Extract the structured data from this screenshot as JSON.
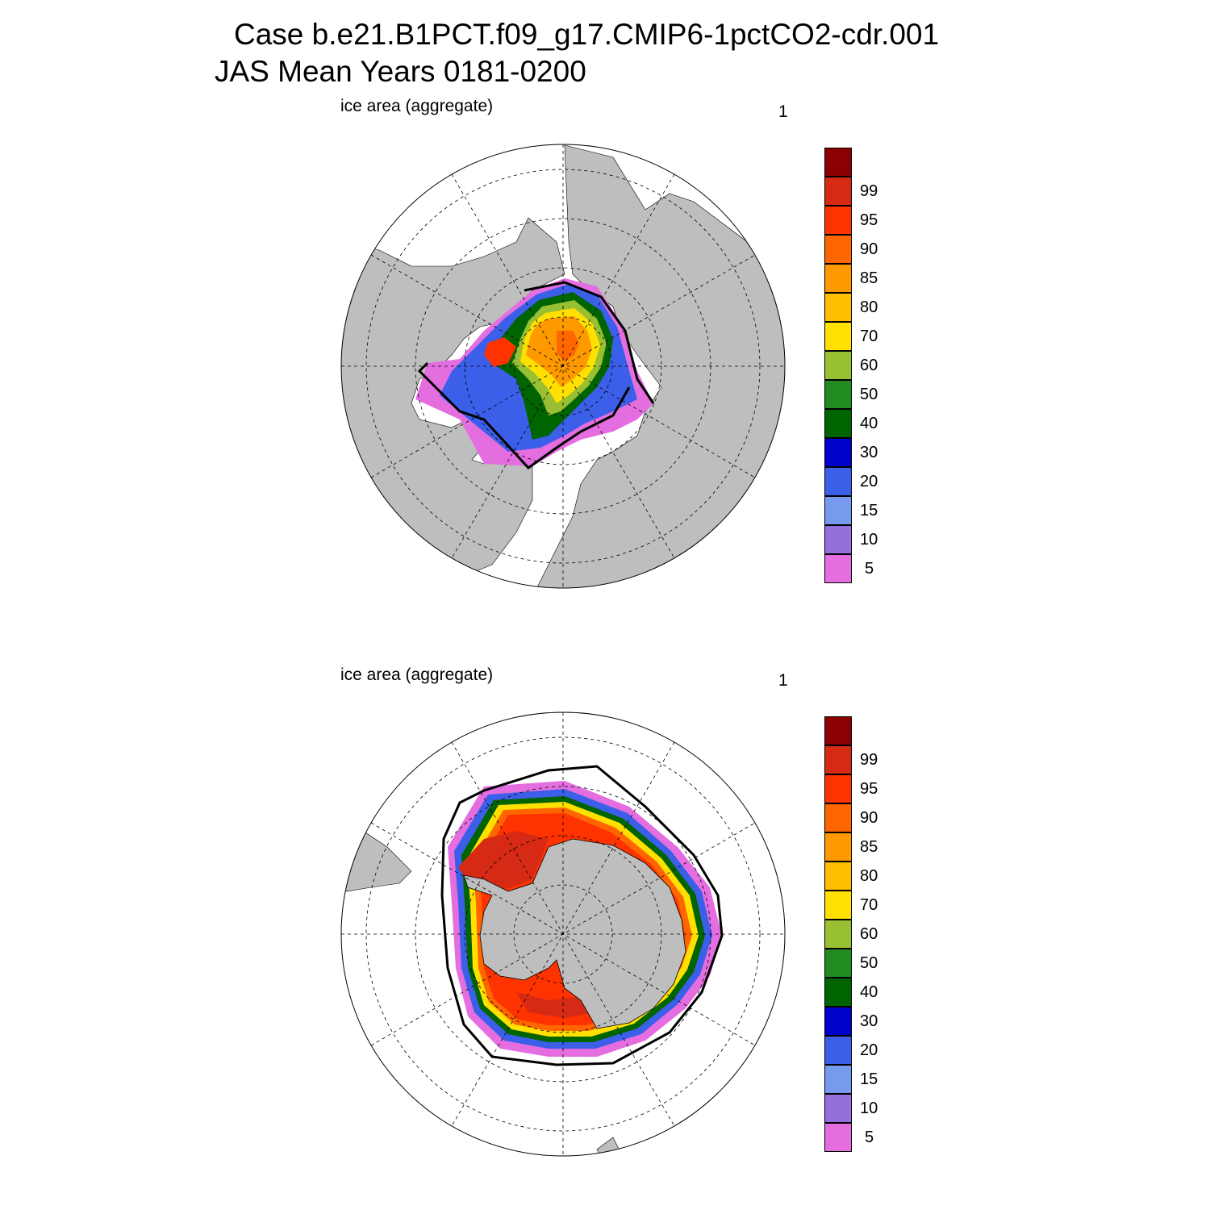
{
  "title": {
    "line1": "Case b.e21.B1PCT.f09_g17.CMIP6-1pctCO2-cdr.001",
    "line2": "JAS Mean   Years 0181-0200"
  },
  "panels": [
    {
      "id": "arctic",
      "hemisphere": "north",
      "left_label": "ice area  (aggregate)",
      "right_label": "1"
    },
    {
      "id": "antarctic",
      "hemisphere": "south",
      "left_label": "ice area  (aggregate)",
      "right_label": "1"
    }
  ],
  "colorbar": {
    "labels": [
      "99",
      "95",
      "90",
      "85",
      "80",
      "70",
      "60",
      "50",
      "40",
      "30",
      "20",
      "15",
      "10",
      "5"
    ],
    "colors": [
      "#8b0000",
      "#d62a14",
      "#ff3300",
      "#ff6600",
      "#ff9900",
      "#ffbf00",
      "#ffe000",
      "#99bf33",
      "#228b22",
      "#006400",
      "#0000cc",
      "#3b5fe8",
      "#7799ee",
      "#9370db",
      "#e46ee0"
    ]
  },
  "map_colors": {
    "land": "#bebebe",
    "ocean": "#ffffff",
    "contour": "#000000"
  }
}
